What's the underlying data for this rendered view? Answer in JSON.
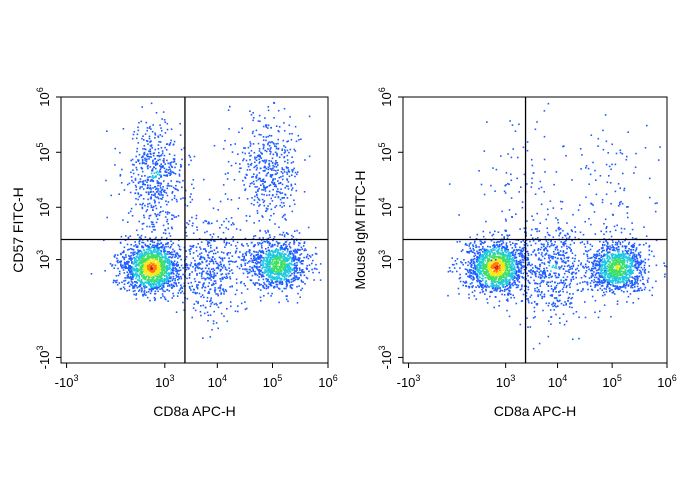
{
  "chart_data": [
    {
      "type": "scatter",
      "subtype": "flow-cytometry-density",
      "xlabel": "CD8a APC-H",
      "ylabel": "CD57 FITC-H",
      "x_scale": "biexponential",
      "y_scale": "biexponential",
      "x_ticks": [
        {
          "value": -1000,
          "base": "-10",
          "exp": "3"
        },
        {
          "value": 1000,
          "base": "10",
          "exp": "3"
        },
        {
          "value": 10000,
          "base": "10",
          "exp": "4"
        },
        {
          "value": 100000,
          "base": "10",
          "exp": "5"
        },
        {
          "value": 1000000,
          "base": "10",
          "exp": "6"
        }
      ],
      "y_ticks": [
        {
          "value": -1000,
          "base": "-10",
          "exp": "3"
        },
        {
          "value": 1000,
          "base": "10",
          "exp": "3"
        },
        {
          "value": 10000,
          "base": "10",
          "exp": "4"
        },
        {
          "value": 100000,
          "base": "10",
          "exp": "5"
        },
        {
          "value": 1000000,
          "base": "10",
          "exp": "6"
        }
      ],
      "quadrant_gate": {
        "x": 2500,
        "y": 2500
      },
      "populations": [
        {
          "x": 500,
          "y": 700,
          "density": 1.0
        },
        {
          "x": 120000,
          "y": 800,
          "density": 0.7
        },
        {
          "x": 600,
          "y": 40000,
          "density": 0.35
        },
        {
          "x": 80000,
          "y": 50000,
          "density": 0.3
        },
        {
          "x": 8000,
          "y": 700,
          "density": 0.3
        }
      ],
      "grid": false,
      "legend": "none"
    },
    {
      "type": "scatter",
      "subtype": "flow-cytometry-density",
      "xlabel": "CD8a APC-H",
      "ylabel": "Mouse IgM FITC-H",
      "x_scale": "biexponential",
      "y_scale": "biexponential",
      "x_ticks": [
        {
          "value": -1000,
          "base": "-10",
          "exp": "3"
        },
        {
          "value": 1000,
          "base": "10",
          "exp": "3"
        },
        {
          "value": 10000,
          "base": "10",
          "exp": "4"
        },
        {
          "value": 100000,
          "base": "10",
          "exp": "5"
        },
        {
          "value": 1000000,
          "base": "10",
          "exp": "6"
        }
      ],
      "y_ticks": [
        {
          "value": -1000,
          "base": "-10",
          "exp": "3"
        },
        {
          "value": 1000,
          "base": "10",
          "exp": "3"
        },
        {
          "value": 10000,
          "base": "10",
          "exp": "4"
        },
        {
          "value": 100000,
          "base": "10",
          "exp": "5"
        },
        {
          "value": 1000000,
          "base": "10",
          "exp": "6"
        }
      ],
      "quadrant_gate": {
        "x": 2500,
        "y": 2500
      },
      "populations": [
        {
          "x": 600,
          "y": 700,
          "density": 1.0
        },
        {
          "x": 120000,
          "y": 700,
          "density": 0.75
        },
        {
          "x": 8000,
          "y": 700,
          "density": 0.35
        },
        {
          "x": 2000,
          "y": 30000,
          "density": 0.03
        },
        {
          "x": 100000,
          "y": 20000,
          "density": 0.04
        }
      ],
      "grid": false,
      "legend": "none"
    }
  ]
}
